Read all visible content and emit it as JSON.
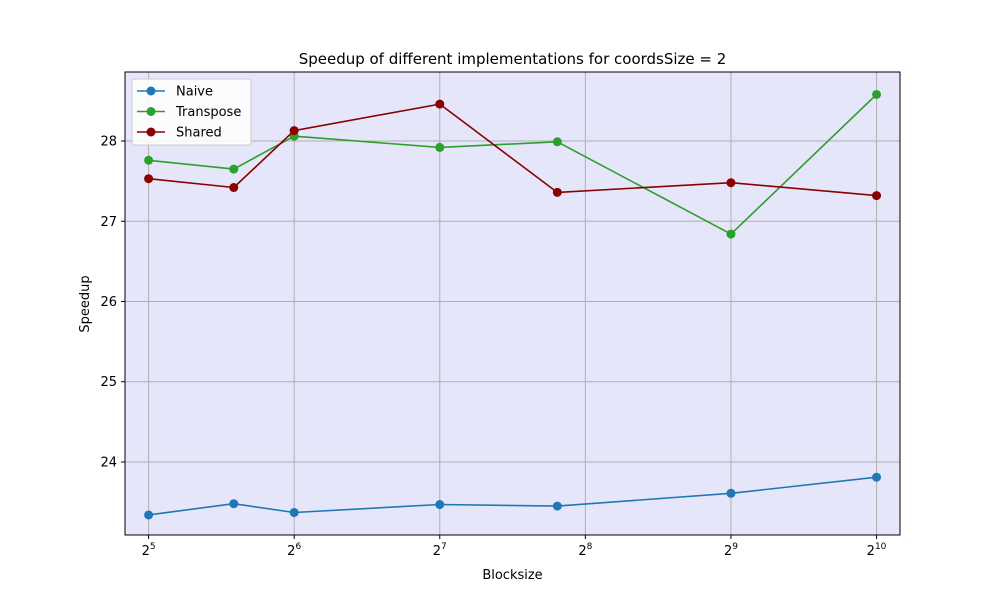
{
  "chart_data": {
    "type": "line",
    "title": "Speedup of different implementations for coordsSize = 2",
    "xlabel": "Blocksize",
    "ylabel": "Speedup",
    "x_scale": "log2",
    "x": [
      32,
      48,
      64,
      128,
      224,
      512,
      1024
    ],
    "xlim": [
      28.6,
      1145
    ],
    "ylim": [
      23.09,
      28.86
    ],
    "x_ticks": [
      {
        "value": 32,
        "base": "2",
        "exp": "5"
      },
      {
        "value": 64,
        "base": "2",
        "exp": "6"
      },
      {
        "value": 128,
        "base": "2",
        "exp": "7"
      },
      {
        "value": 256,
        "base": "2",
        "exp": "8"
      },
      {
        "value": 512,
        "base": "2",
        "exp": "9"
      },
      {
        "value": 1024,
        "base": "2",
        "exp": "10"
      }
    ],
    "y_ticks": [
      {
        "value": 24,
        "label": "24"
      },
      {
        "value": 25,
        "label": "25"
      },
      {
        "value": 26,
        "label": "26"
      },
      {
        "value": 27,
        "label": "27"
      },
      {
        "value": 28,
        "label": "28"
      }
    ],
    "grid": true,
    "background": "#e6e6fa",
    "legend_position": "top-left",
    "series": [
      {
        "name": "Naive",
        "color": "#1f77b4",
        "values": [
          23.34,
          23.48,
          23.37,
          23.47,
          23.45,
          23.61,
          23.81
        ]
      },
      {
        "name": "Transpose",
        "color": "#2ca02c",
        "values": [
          27.76,
          27.65,
          28.06,
          27.92,
          27.99,
          26.84,
          28.58
        ]
      },
      {
        "name": "Shared",
        "color": "#8b0000",
        "values": [
          27.53,
          27.42,
          28.13,
          28.46,
          27.36,
          27.48,
          27.32
        ]
      }
    ]
  }
}
